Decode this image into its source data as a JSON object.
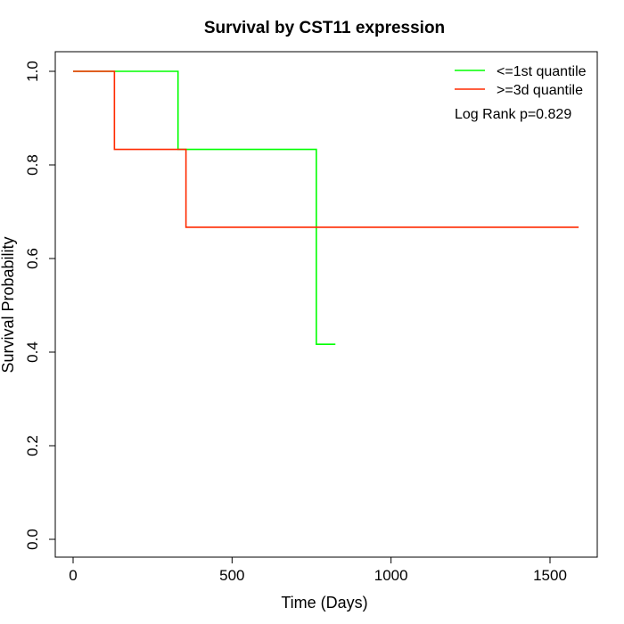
{
  "chart_data": {
    "type": "line",
    "title": "Survival by CST11 expression",
    "xlabel": "Time (Days)",
    "ylabel": "Survival Probability",
    "xlim": [
      0,
      1650
    ],
    "ylim": [
      0,
      1.0
    ],
    "x_ticks": [
      0,
      500,
      1000,
      1500
    ],
    "y_ticks": [
      0.0,
      0.2,
      0.4,
      0.6,
      0.8,
      1.0
    ],
    "grid": false,
    "legend_position": "top-right",
    "series": [
      {
        "name": "<=1st quantile",
        "color": "#00ff00",
        "step": true,
        "x": [
          0,
          330,
          765,
          825
        ],
        "y": [
          1.0,
          0.8333,
          0.4167,
          0.4167
        ]
      },
      {
        "name": ">=3d quantile",
        "color": "#ff2a00",
        "step": true,
        "x": [
          0,
          130,
          355,
          1590
        ],
        "y": [
          1.0,
          0.8333,
          0.6667,
          0.6667
        ]
      }
    ],
    "annotation": "Log Rank p=0.829"
  }
}
